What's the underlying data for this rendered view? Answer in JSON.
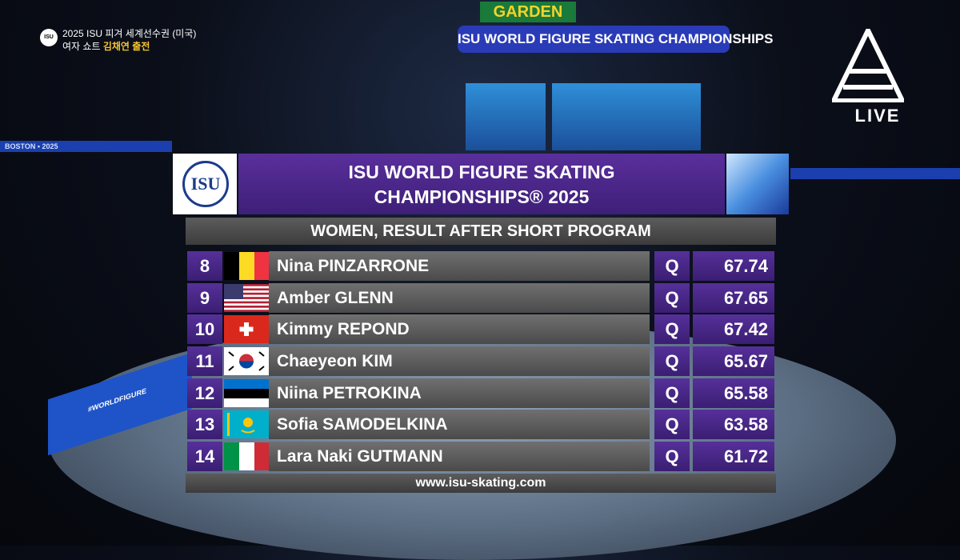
{
  "broadcast": {
    "title": "2025 ISU 피겨 세계선수권 (미국)",
    "subtitle": "여자 쇼트",
    "highlight": "김채연 출전",
    "badge": "ISU",
    "live": "LIVE"
  },
  "arena": {
    "jumbotron_brand": "GARDEN",
    "jumbotron_title": "ISU WORLD FIGURE SKATING CHAMPIONSHIPS",
    "ribbon": "BOSTON • 2025",
    "board_tag": "#WORLDFIGURE"
  },
  "graphic": {
    "logo": "ISU",
    "title_line1": "ISU WORLD FIGURE SKATING",
    "title_line2": "CHAMPIONSHIPS® 2025",
    "subtitle": "WOMEN, RESULT AFTER SHORT PROGRAM",
    "rows": [
      {
        "rank": 8,
        "name": "Nina PINZARRONE",
        "status": "Q",
        "score": 67.74
      },
      {
        "rank": 9,
        "name": "Amber GLENN",
        "status": "Q",
        "score": 67.65
      },
      {
        "rank": 10,
        "name": "Kimmy REPOND",
        "status": "Q",
        "score": 67.42
      },
      {
        "rank": 11,
        "name": "Chaeyeon KIM",
        "status": "Q",
        "score": 65.67
      },
      {
        "rank": 12,
        "name": "Niina PETROKINA",
        "status": "Q",
        "score": 65.58
      },
      {
        "rank": 13,
        "name": "Sofia SAMODELKINA",
        "status": "Q",
        "score": 63.58
      },
      {
        "rank": 14,
        "name": "Lara Naki GUTMANN",
        "status": "Q",
        "score": 61.72
      }
    ],
    "footer": "www.isu-skating.com"
  }
}
